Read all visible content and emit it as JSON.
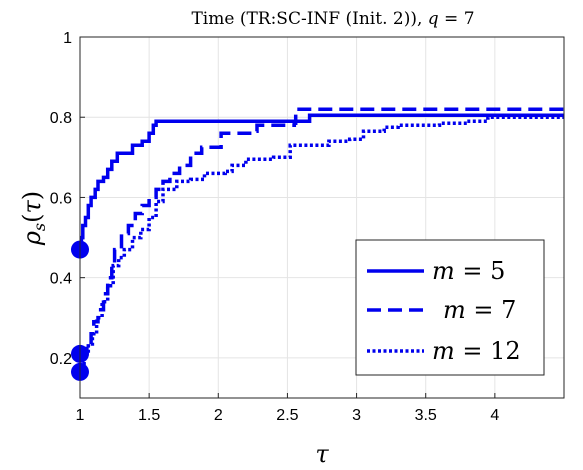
{
  "chart_data": {
    "type": "line",
    "title": "Time (TR:SC-INF (Init. 2)), q = 7",
    "xlabel": "τ",
    "ylabel": "ρs(τ)",
    "xlim": [
      1,
      4.5
    ],
    "ylim": [
      0.1,
      1.0
    ],
    "xticks": [
      "1",
      "1.5",
      "2",
      "2.5",
      "3",
      "3.5",
      "4"
    ],
    "yticks": [
      "0.2",
      "0.4",
      "0.6",
      "0.8",
      "1"
    ],
    "grid": true,
    "legend_position": "bottom-right",
    "line_color": "#0000ee",
    "series": [
      {
        "name": "m = 5",
        "style": "solid",
        "start_marker": [
          1,
          0.47
        ],
        "points": [
          [
            1,
            0.47
          ],
          [
            1.01,
            0.5
          ],
          [
            1.02,
            0.53
          ],
          [
            1.04,
            0.55
          ],
          [
            1.06,
            0.58
          ],
          [
            1.08,
            0.6
          ],
          [
            1.11,
            0.62
          ],
          [
            1.13,
            0.64
          ],
          [
            1.17,
            0.65
          ],
          [
            1.2,
            0.67
          ],
          [
            1.23,
            0.69
          ],
          [
            1.27,
            0.71
          ],
          [
            1.35,
            0.71
          ],
          [
            1.38,
            0.73
          ],
          [
            1.45,
            0.74
          ],
          [
            1.5,
            0.76
          ],
          [
            1.53,
            0.78
          ],
          [
            1.55,
            0.79
          ],
          [
            2.65,
            0.79
          ],
          [
            2.66,
            0.805
          ],
          [
            4.5,
            0.805
          ]
        ]
      },
      {
        "name": "m = 7",
        "style": "dashed",
        "start_marker": [
          1,
          0.21
        ],
        "points": [
          [
            1,
            0.21
          ],
          [
            1.05,
            0.23
          ],
          [
            1.08,
            0.26
          ],
          [
            1.1,
            0.29
          ],
          [
            1.13,
            0.32
          ],
          [
            1.17,
            0.36
          ],
          [
            1.2,
            0.4
          ],
          [
            1.23,
            0.43
          ],
          [
            1.25,
            0.47
          ],
          [
            1.3,
            0.51
          ],
          [
            1.35,
            0.53
          ],
          [
            1.4,
            0.56
          ],
          [
            1.45,
            0.58
          ],
          [
            1.5,
            0.6
          ],
          [
            1.55,
            0.62
          ],
          [
            1.6,
            0.64
          ],
          [
            1.65,
            0.66
          ],
          [
            1.72,
            0.68
          ],
          [
            1.8,
            0.71
          ],
          [
            1.88,
            0.725
          ],
          [
            2.0,
            0.725
          ],
          [
            2.02,
            0.76
          ],
          [
            2.27,
            0.765
          ],
          [
            2.28,
            0.78
          ],
          [
            2.55,
            0.785
          ],
          [
            2.56,
            0.82
          ],
          [
            4.5,
            0.82
          ]
        ]
      },
      {
        "name": "m = 12",
        "style": "dotted",
        "start_marker": [
          1,
          0.165
        ],
        "points": [
          [
            1,
            0.165
          ],
          [
            1.03,
            0.21
          ],
          [
            1.06,
            0.23
          ],
          [
            1.09,
            0.26
          ],
          [
            1.12,
            0.3
          ],
          [
            1.16,
            0.34
          ],
          [
            1.2,
            0.38
          ],
          [
            1.24,
            0.43
          ],
          [
            1.28,
            0.45
          ],
          [
            1.32,
            0.47
          ],
          [
            1.38,
            0.5
          ],
          [
            1.44,
            0.52
          ],
          [
            1.5,
            0.55
          ],
          [
            1.55,
            0.59
          ],
          [
            1.6,
            0.62
          ],
          [
            1.7,
            0.64
          ],
          [
            1.8,
            0.645
          ],
          [
            1.9,
            0.66
          ],
          [
            2.05,
            0.665
          ],
          [
            2.1,
            0.68
          ],
          [
            2.2,
            0.695
          ],
          [
            2.4,
            0.7
          ],
          [
            2.52,
            0.73
          ],
          [
            2.75,
            0.73
          ],
          [
            2.8,
            0.74
          ],
          [
            2.95,
            0.745
          ],
          [
            3.05,
            0.765
          ],
          [
            3.2,
            0.775
          ],
          [
            3.3,
            0.78
          ],
          [
            3.5,
            0.78
          ],
          [
            3.6,
            0.785
          ],
          [
            3.8,
            0.79
          ],
          [
            3.9,
            0.79
          ],
          [
            3.95,
            0.8
          ],
          [
            4.5,
            0.8
          ]
        ]
      }
    ]
  }
}
